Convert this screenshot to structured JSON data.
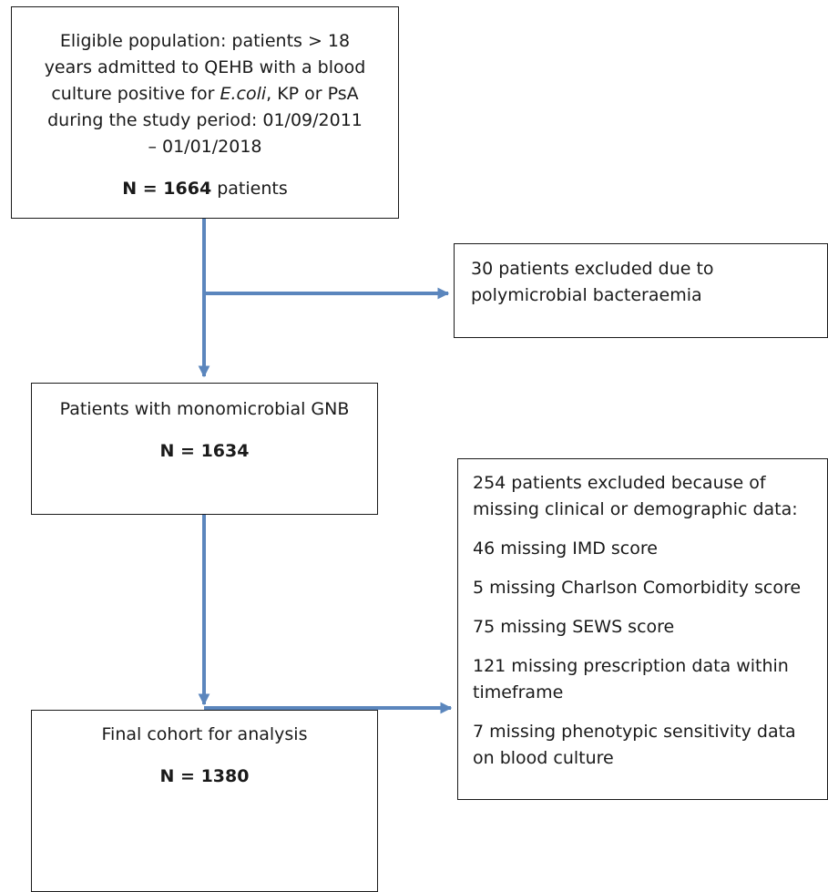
{
  "boxes": {
    "eligible": {
      "lines": [
        "Eligible population: patients > 18",
        "years admitted to QEHB with a blood",
        "during the study period: 01/09/2011",
        "– 01/01/2018"
      ],
      "line3_prefix": "culture positive for ",
      "line3_italic": "E.coli",
      "line3_suffix": ", KP or PsA",
      "count_bold": "N = 1664",
      "count_rest": " patients"
    },
    "excluded_poly": {
      "lines": [
        "30 patients excluded due to",
        "polymicrobial bacteraemia"
      ]
    },
    "monomicrobial": {
      "title": "Patients with monomicrobial GNB",
      "count": "N = 1634"
    },
    "excluded_missing": {
      "header_lines": [
        "254 patients excluded because of",
        "missing clinical or demographic data:"
      ],
      "items": [
        [
          "46 missing IMD score"
        ],
        [
          "5 missing Charlson Comorbidity score"
        ],
        [
          "75 missing SEWS score"
        ],
        [
          "121 missing prescription data within",
          "timeframe"
        ],
        [
          "7 missing phenotypic sensitivity data",
          "on blood culture"
        ]
      ]
    },
    "final": {
      "title": "Final cohort for analysis",
      "count": "N = 1380"
    }
  },
  "colors": {
    "arrow": "#5b86bd",
    "arrow_outline": "#3e6597",
    "border": "#1a1a1a"
  }
}
